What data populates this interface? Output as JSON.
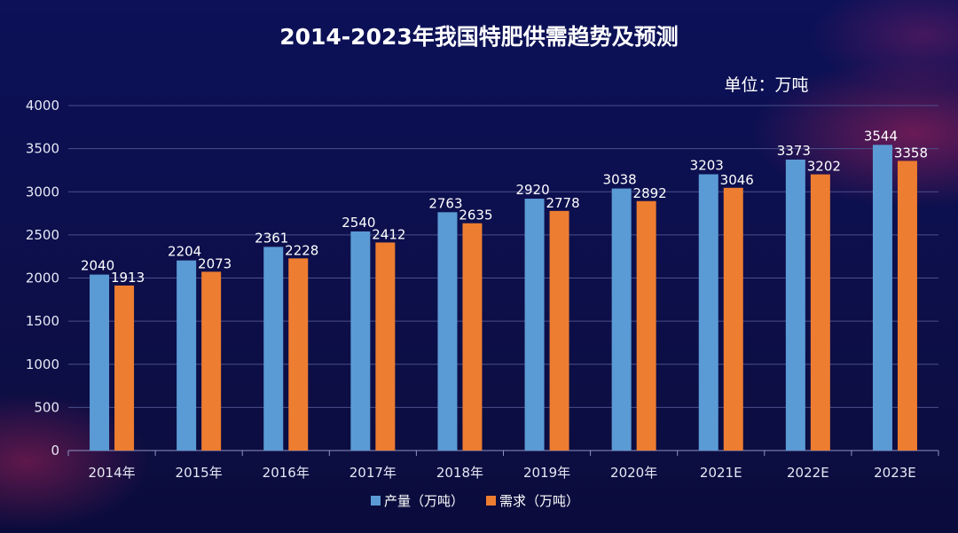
{
  "chart_data": {
    "type": "bar",
    "title": "2014-2023年我国特肥供需趋势及预测",
    "unit_label": "单位：万吨",
    "categories": [
      "2014年",
      "2015年",
      "2016年",
      "2017年",
      "2018年",
      "2019年",
      "2020年",
      "2021E",
      "2022E",
      "2023E"
    ],
    "series": [
      {
        "name": "产量（万吨）",
        "color": "#5b9bd5",
        "values": [
          2040,
          2204,
          2361,
          2540,
          2763,
          2920,
          3038,
          3203,
          3373,
          3544
        ]
      },
      {
        "name": "需求（万吨）",
        "color": "#ed7d31",
        "values": [
          1913,
          2073,
          2228,
          2412,
          2635,
          2778,
          2892,
          3046,
          3202,
          3358
        ]
      }
    ],
    "ylim": [
      0,
      4000
    ],
    "yticks": [
      0,
      500,
      1000,
      1500,
      2000,
      2500,
      3000,
      3500,
      4000
    ],
    "grid": true,
    "legend_position": "bottom"
  }
}
